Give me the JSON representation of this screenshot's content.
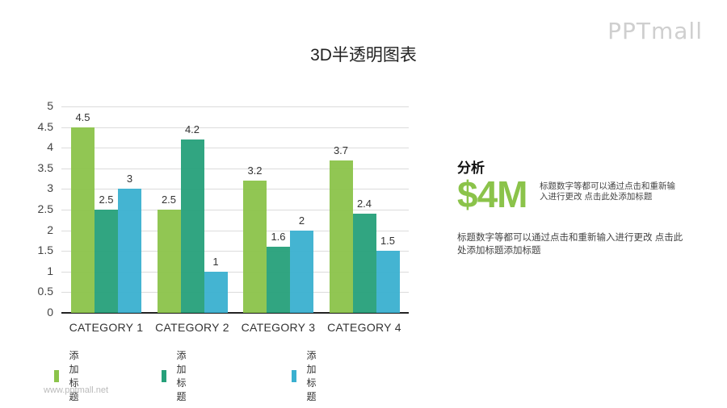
{
  "slide": {
    "title": "3D半透明图表",
    "logo": "PPTmall",
    "footer": "www.pptmall.net"
  },
  "side": {
    "title": "分析",
    "big_number": "$4M",
    "big_desc": "标题数字等都可以通过点击和重新输入进行更改 点击此处添加标题",
    "desc": "标题数字等都可以通过点击和重新输入进行更改 点击此处添加标题添加标题"
  },
  "legend": [
    {
      "label": "添加标题",
      "color": "#8bc34a"
    },
    {
      "label": "添加标题",
      "color": "#26a07a"
    },
    {
      "label": "添加标题",
      "color": "#3ab0d0"
    }
  ],
  "chart_data": {
    "type": "bar",
    "title": "3D半透明图表",
    "categories": [
      "CATEGORY 1",
      "CATEGORY 2",
      "CATEGORY 3",
      "CATEGORY 4"
    ],
    "series": [
      {
        "name": "添加标题",
        "values": [
          4.5,
          2.5,
          3.2,
          3.7
        ],
        "color": "#8bc34a"
      },
      {
        "name": "添加标题",
        "values": [
          2.5,
          4.2,
          1.6,
          2.4
        ],
        "color": "#26a07a"
      },
      {
        "name": "添加标题",
        "values": [
          3,
          1,
          2,
          1.5
        ],
        "color": "#3ab0d0"
      }
    ],
    "yticks": [
      "0",
      "0.5",
      "1",
      "1.5",
      "2",
      "2.5",
      "3",
      "3.5",
      "4",
      "4.5",
      "5"
    ],
    "ylim": [
      0,
      5
    ],
    "xlabel": "",
    "ylabel": "",
    "grid": true,
    "legend_position": "bottom",
    "data_labels": true
  }
}
